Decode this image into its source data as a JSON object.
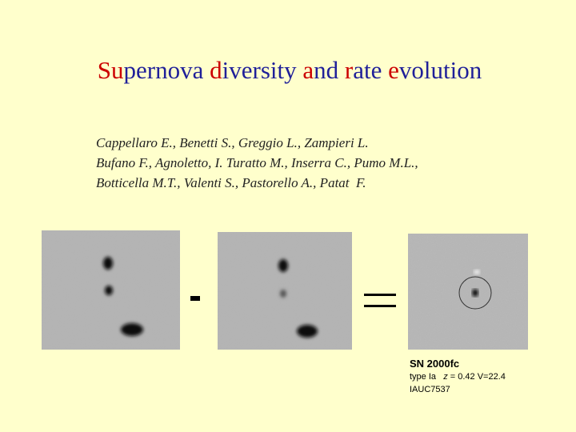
{
  "title": {
    "segments": [
      {
        "text": "Su",
        "color": "#cc0000"
      },
      {
        "text": "pernova ",
        "color": "#1f1f99"
      },
      {
        "text": "d",
        "color": "#cc0000"
      },
      {
        "text": "iversity ",
        "color": "#1f1f99"
      },
      {
        "text": "a",
        "color": "#cc0000"
      },
      {
        "text": "nd ",
        "color": "#1f1f99"
      },
      {
        "text": "r",
        "color": "#cc0000"
      },
      {
        "text": "ate ",
        "color": "#1f1f99"
      },
      {
        "text": "e",
        "color": "#cc0000"
      },
      {
        "text": "volution",
        "color": "#1f1f99"
      }
    ]
  },
  "authors": [
    "Cappellaro E., Benetti S., Greggio L., Zampieri L.",
    "Bufano F., Agnoletto, I. Turatto M., Inserra C., Pumo M.L.,",
    "Botticella M.T., Valenti S., Pastorello A., Patat  F."
  ],
  "caption": {
    "name": "SN 2000fc",
    "type": "type Ia",
    "z": "z",
    "details": "= 0.42 V=22.4",
    "circular": "IAUC7537"
  }
}
